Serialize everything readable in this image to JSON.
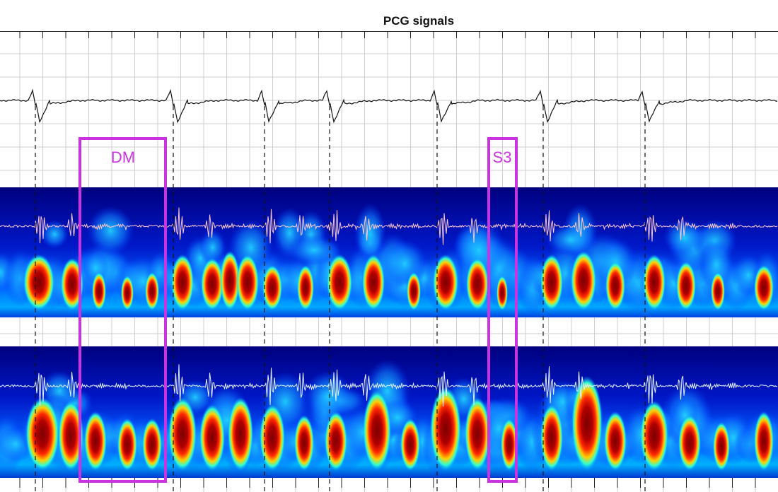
{
  "title": "PCG signals",
  "annotations": [
    {
      "label": "DM",
      "color": "#cc33e0"
    },
    {
      "label": "S3",
      "color": "#cc33e0"
    }
  ],
  "colors": {
    "ecg_trace": "#111111",
    "heart_cycle_markers": "#111111",
    "grid": "#c8c8c8",
    "spectrogram_colormap": [
      "#00008f",
      "#0000ff",
      "#00ffff",
      "#ffff00",
      "#ff0000",
      "#800000"
    ],
    "waveform_top": "#ffc8d2",
    "waveform_bottom": "#e6f2ff"
  }
}
